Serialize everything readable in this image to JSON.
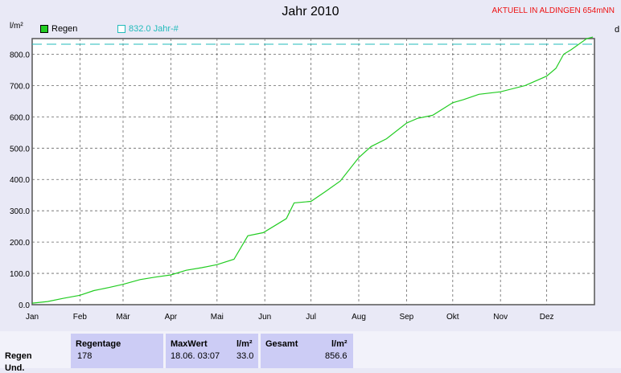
{
  "header": {
    "title": "Jahr 2010",
    "station": "AKTUELL IN ALDINGEN 654mNN",
    "unit_label": "l/m²",
    "edge_label": "d"
  },
  "legend": {
    "rain_label": "Regen",
    "avg_label": "832.0 Jahr-#"
  },
  "colors": {
    "rain_line": "#22cc22",
    "avg_line": "#22bbbb",
    "station_text": "#ee1111",
    "plot_bg": "#ffffff",
    "page_bg": "#e9e9f6"
  },
  "chart_data": {
    "type": "line",
    "title": "Jahr 2010",
    "ylabel": "l/m²",
    "ylim": [
      0,
      850
    ],
    "y_ticks": [
      "0.0",
      "100.0",
      "200.0",
      "300.0",
      "400.0",
      "500.0",
      "600.0",
      "700.0",
      "800.0"
    ],
    "months": [
      "Jan",
      "Feb",
      "Mär",
      "Apr",
      "Mai",
      "Jun",
      "Jul",
      "Aug",
      "Sep",
      "Okt",
      "Nov",
      "Dez"
    ],
    "grid": true,
    "x_unit": "day of year",
    "series": [
      {
        "name": "Regen",
        "x": [
          0,
          10,
          20,
          31,
          40,
          50,
          59,
          70,
          80,
          90,
          100,
          110,
          120,
          131,
          140,
          150,
          160,
          165,
          170,
          181,
          190,
          200,
          212,
          220,
          230,
          243,
          250,
          260,
          273,
          280,
          290,
          304,
          320,
          334,
          340,
          345,
          350,
          360,
          364
        ],
        "y": [
          5,
          10,
          20,
          30,
          45,
          55,
          65,
          80,
          88,
          95,
          110,
          118,
          128,
          145,
          220,
          230,
          260,
          275,
          325,
          330,
          360,
          395,
          470,
          505,
          530,
          580,
          595,
          605,
          645,
          655,
          672,
          680,
          700,
          730,
          755,
          800,
          815,
          850,
          855
        ]
      },
      {
        "name": "832.0 Jahr-#",
        "x": [
          0,
          364
        ],
        "y": [
          832,
          832
        ]
      }
    ]
  },
  "stats": {
    "row_label": "Regen",
    "row_label_2": "Und.",
    "regentage_header": "Regentage",
    "regentage_value": "178",
    "maxwert_header": "MaxWert",
    "maxwert_unit": "l/m²",
    "maxwert_date": "18.06.  03:07",
    "maxwert_value": "33.0",
    "gesamt_header": "Gesamt",
    "gesamt_unit": "l/m²",
    "gesamt_value": "856.6"
  }
}
